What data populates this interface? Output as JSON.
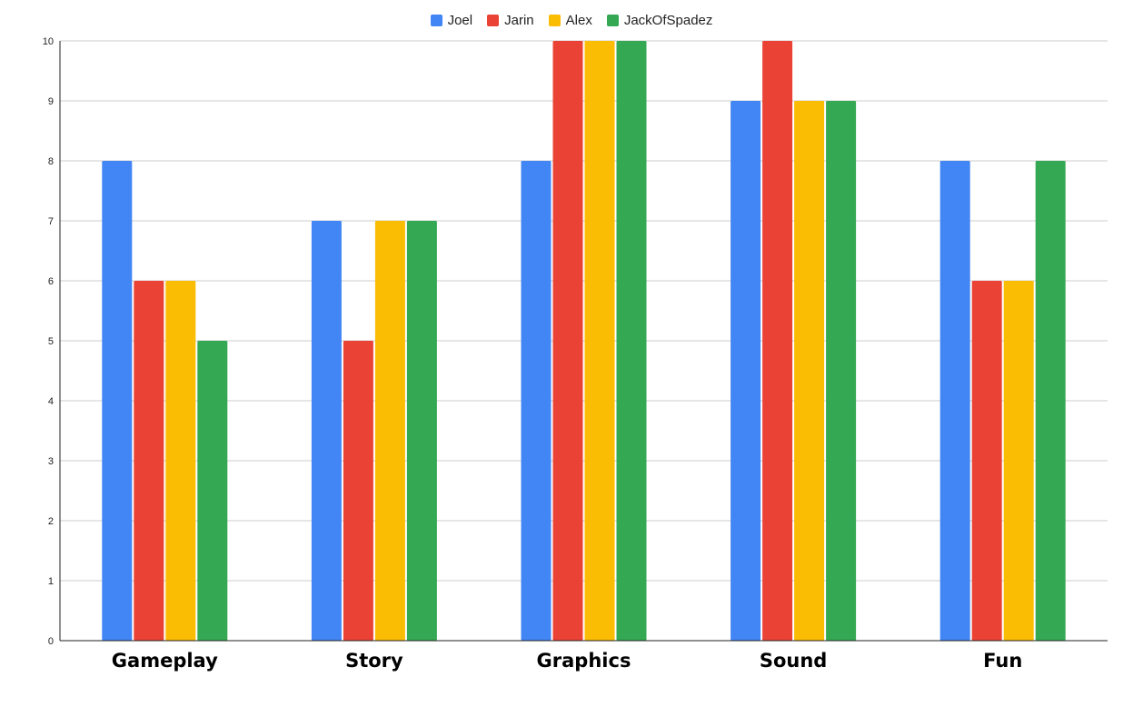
{
  "chart_data": {
    "type": "bar",
    "title": "",
    "xlabel": "",
    "ylabel": "",
    "categories": [
      "Gameplay",
      "Story",
      "Graphics",
      "Sound",
      "Fun"
    ],
    "series": [
      {
        "name": "Joel",
        "color": "#4285f4",
        "values": [
          8,
          7,
          8,
          9,
          8
        ]
      },
      {
        "name": "Jarin",
        "color": "#ea4335",
        "values": [
          6,
          5,
          10,
          10,
          6
        ]
      },
      {
        "name": "Alex",
        "color": "#fbbc04",
        "values": [
          6,
          7,
          10,
          9,
          6
        ]
      },
      {
        "name": "JackOfSpadez",
        "color": "#34a853",
        "values": [
          5,
          7,
          10,
          9,
          8
        ]
      }
    ],
    "ylim": [
      0,
      10
    ],
    "yticks": [
      "0",
      "1",
      "2",
      "3",
      "4",
      "5",
      "6",
      "7",
      "8",
      "9",
      "10"
    ],
    "grid": true,
    "legend_position": "top-center"
  }
}
